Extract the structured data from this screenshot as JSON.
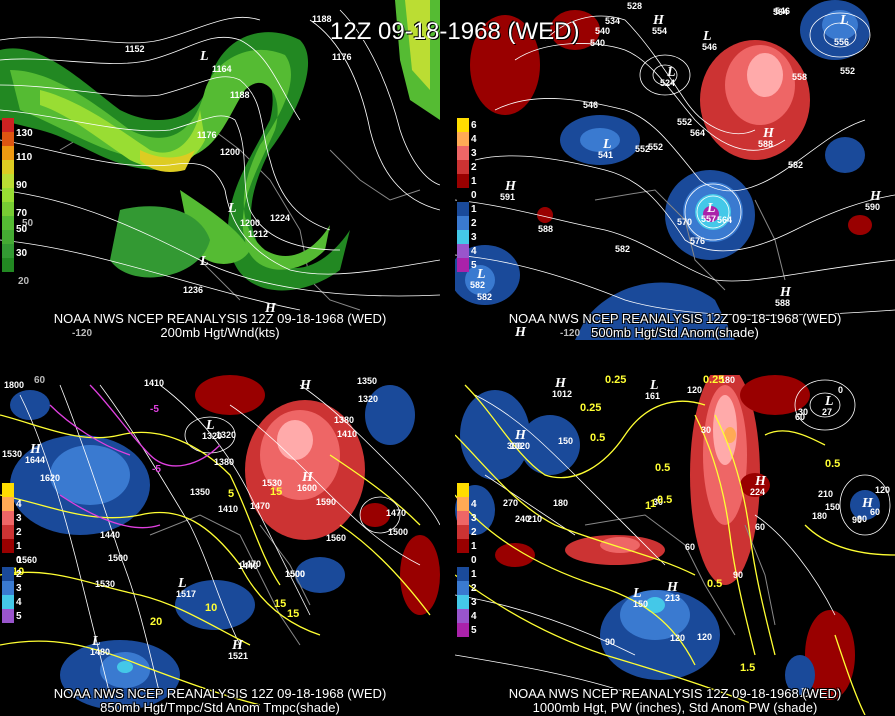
{
  "main_title": "12Z 09-18-1968 (WED)",
  "panels": [
    {
      "id": "tl",
      "caption_line1": "NOAA NWS NCEP REANALYSIS 12Z 09-18-1968 (WED)",
      "caption_line2": "200mb Hgt/Wnd(kts)",
      "legend": [
        {
          "label": "130",
          "color": "#cc2222"
        },
        {
          "label": "",
          "color": "#dd5511"
        },
        {
          "label": "110",
          "color": "#ee9911"
        },
        {
          "label": "",
          "color": "#ddcc22"
        },
        {
          "label": "90",
          "color": "#bbdd33"
        },
        {
          "label": "",
          "color": "#99dd33"
        },
        {
          "label": "70",
          "color": "#77cc33"
        },
        {
          "label": "",
          "color": "#55bb33"
        },
        {
          "label": "50",
          "color": "#44aa33"
        },
        {
          "label": "",
          "color": "#339933"
        },
        {
          "label": "30",
          "color": "#228822"
        }
      ],
      "contour_labels": [
        "1152",
        "1164",
        "1188",
        "1176",
        "1200",
        "1212",
        "1224",
        "1236",
        "1188",
        "1176",
        "1200"
      ],
      "lat_labels": [
        "20",
        "50"
      ],
      "lon_labels": [
        "-120"
      ],
      "centers": [
        "L",
        "L",
        "L",
        "H",
        "L"
      ]
    },
    {
      "id": "tr",
      "caption_line1": "NOAA NWS NCEP REANALYSIS 12Z 09-18-1968 (WED)",
      "caption_line2": "500mb Hgt/Std Anom(shade)",
      "legend": [
        {
          "label": "6",
          "color": "#ffdd00"
        },
        {
          "label": "4",
          "color": "#ffaa55"
        },
        {
          "label": "3",
          "color": "#ee6666"
        },
        {
          "label": "2",
          "color": "#cc3333"
        },
        {
          "label": "1",
          "color": "#990000"
        },
        {
          "label": "0",
          "color": "#000000"
        },
        {
          "label": "1",
          "color": "#1a4a9a"
        },
        {
          "label": "2",
          "color": "#3a7ad0"
        },
        {
          "label": "3",
          "color": "#44c8e8"
        },
        {
          "label": "4",
          "color": "#9955cc"
        },
        {
          "label": "5",
          "color": "#aa22aa"
        }
      ],
      "contour_labels": [
        "528",
        "534",
        "540",
        "540",
        "546",
        "552",
        "564",
        "552",
        "558",
        "564",
        "546",
        "552",
        "582",
        "588",
        "582",
        "570",
        "576",
        "564",
        "552",
        "558",
        "582"
      ],
      "lat_labels": [
        "-120"
      ],
      "centers": [
        "H",
        "L",
        "L",
        "L",
        "H",
        "L",
        "H",
        "L",
        "H",
        "H",
        "H",
        "L"
      ],
      "center_values": [
        "554",
        "546",
        "524",
        "541",
        "588",
        "591",
        "556",
        "557",
        "590",
        "582",
        "588"
      ]
    },
    {
      "id": "bl",
      "caption_line1": "NOAA NWS NCEP REANALYSIS 12Z 09-18-1968 (WED)",
      "caption_line2": "850mb Hgt/Tmpc/Std Anom Tmpc(shade)",
      "legend": [
        {
          "label": "",
          "color": "#ffdd00"
        },
        {
          "label": "4",
          "color": "#ffaa55"
        },
        {
          "label": "3",
          "color": "#ee6666"
        },
        {
          "label": "2",
          "color": "#cc3333"
        },
        {
          "label": "1",
          "color": "#990000"
        },
        {
          "label": "0",
          "color": "#000000"
        },
        {
          "label": "2",
          "color": "#1a4a9a"
        },
        {
          "label": "3",
          "color": "#3a7ad0"
        },
        {
          "label": "4",
          "color": "#44c8e8"
        },
        {
          "label": "5",
          "color": "#9955cc"
        }
      ],
      "contour_labels": [
        "1800",
        "1410",
        "1350",
        "1320",
        "1380",
        "1320",
        "1410",
        "1380",
        "1440",
        "1530",
        "1620",
        "1350",
        "1410",
        "1470",
        "1530",
        "1590",
        "1560",
        "1500",
        "1470",
        "1500",
        "1440",
        "1590",
        "1560",
        "1500",
        "1530",
        "1470",
        "1500"
      ],
      "temp_labels": [
        "-5",
        "-5",
        "5",
        "10",
        "15",
        "20",
        "10",
        "15",
        "15"
      ],
      "lat_labels": [
        "60"
      ],
      "centers": [
        "H",
        "L",
        "H",
        "L",
        "H",
        "L",
        "H"
      ],
      "center_values": [
        "1644",
        "1320",
        "1600",
        "1517",
        "1521",
        "1480"
      ]
    },
    {
      "id": "br",
      "caption_line1": "NOAA NWS NCEP REANALYSIS 12Z 09-18-1968 (WED)",
      "caption_line2": "1000mb Hgt, PW (inches), Std Anom PW (shade)",
      "legend": [
        {
          "label": "",
          "color": "#ffdd00"
        },
        {
          "label": "4",
          "color": "#ffaa55"
        },
        {
          "label": "3",
          "color": "#ee6666"
        },
        {
          "label": "2",
          "color": "#cc3333"
        },
        {
          "label": "1",
          "color": "#990000"
        },
        {
          "label": "0",
          "color": "#000000"
        },
        {
          "label": "1",
          "color": "#1a4a9a"
        },
        {
          "label": "2",
          "color": "#3a7ad0"
        },
        {
          "label": "3",
          "color": "#44c8e8"
        },
        {
          "label": "4",
          "color": "#9955cc"
        },
        {
          "label": "5",
          "color": "#aa22aa"
        }
      ],
      "contour_labels": [
        "180",
        "120",
        "150",
        "300",
        "270",
        "180",
        "210",
        "240",
        "30",
        "60",
        "60",
        "90",
        "150",
        "120",
        "30",
        "0",
        "90",
        "150",
        "180",
        "210",
        "60",
        "90",
        "120",
        "60",
        "90",
        "120",
        "30"
      ],
      "pw_labels": [
        "0.25",
        "0.25",
        "0.5",
        "0.5",
        "0.5",
        "0.5",
        "0.5",
        "1",
        "1.5",
        "0.25",
        "1"
      ],
      "centers": [
        "H",
        "L",
        "H",
        "L",
        "H",
        "L",
        "H",
        "L",
        "H"
      ],
      "center_values": [
        "1012",
        "161",
        "1020",
        "224",
        "27",
        "213"
      ]
    }
  ]
}
